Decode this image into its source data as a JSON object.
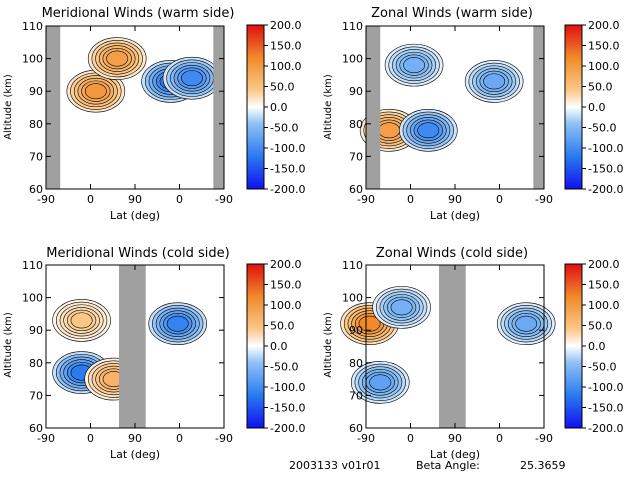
{
  "colorbar": {
    "ticks": [
      "200.0",
      "150.0",
      "100.0",
      "50.0",
      "0.0",
      "-50.0",
      "-100.0",
      "-150.0",
      "-200.0"
    ],
    "range": [
      -200,
      200
    ],
    "colors": [
      "#1010f0",
      "#2a7bf0",
      "#8fc2f5",
      "#ffffff",
      "#fbc98a",
      "#f08a2a",
      "#e01010"
    ]
  },
  "footer": {
    "date_version": "2003133 v01r01",
    "beta_label": "Beta Angle:",
    "beta_value": "25.3659"
  },
  "chart_data": [
    {
      "type": "heatmap",
      "title": "Meridional Winds (warm side)",
      "xlabel": "Lat (deg)",
      "ylabel": "Altitude (km)",
      "xticks": [
        "-90",
        "0",
        "90",
        "0",
        "-90"
      ],
      "yticks": [
        "60",
        "70",
        "80",
        "90",
        "100",
        "110"
      ],
      "ylim": [
        60,
        110
      ],
      "color_scale": [
        -200,
        200
      ],
      "grey_bands_x_fraction": [
        [
          0,
          0.08
        ],
        [
          0.94,
          1.0
        ]
      ],
      "blobs": [
        {
          "x": 0.28,
          "y": 90,
          "value": 120
        },
        {
          "x": 0.4,
          "y": 100,
          "value": 110
        },
        {
          "x": 0.7,
          "y": 93,
          "value": -140
        },
        {
          "x": 0.82,
          "y": 94,
          "value": -120
        }
      ]
    },
    {
      "type": "heatmap",
      "title": "Zonal Winds (warm side)",
      "xlabel": "Lat (deg)",
      "ylabel": "Altitude (km)",
      "xticks": [
        "-90",
        "0",
        "90",
        "0",
        "-90"
      ],
      "yticks": [
        "60",
        "70",
        "80",
        "90",
        "100",
        "110"
      ],
      "ylim": [
        60,
        110
      ],
      "color_scale": [
        -200,
        200
      ],
      "grey_bands_x_fraction": [
        [
          0,
          0.08
        ],
        [
          0.94,
          1.0
        ]
      ],
      "blobs": [
        {
          "x": 0.13,
          "y": 78,
          "value": 110
        },
        {
          "x": 0.35,
          "y": 78,
          "value": -120
        },
        {
          "x": 0.27,
          "y": 98,
          "value": -70
        },
        {
          "x": 0.72,
          "y": 93,
          "value": -80
        }
      ]
    },
    {
      "type": "heatmap",
      "title": "Meridional Winds (cold side)",
      "xlabel": "Lat (deg)",
      "ylabel": "Altitude (km)",
      "xticks": [
        "-90",
        "0",
        "90",
        "0",
        "-90"
      ],
      "yticks": [
        "60",
        "70",
        "80",
        "90",
        "100",
        "110"
      ],
      "ylim": [
        60,
        110
      ],
      "color_scale": [
        -200,
        200
      ],
      "grey_bands_x_fraction": [
        [
          0.41,
          0.56
        ]
      ],
      "blobs": [
        {
          "x": 0.2,
          "y": 77,
          "value": -140
        },
        {
          "x": 0.2,
          "y": 93,
          "value": 50
        },
        {
          "x": 0.74,
          "y": 92,
          "value": -130
        },
        {
          "x": 0.38,
          "y": 75,
          "value": 80
        }
      ]
    },
    {
      "type": "heatmap",
      "title": "Zonal Winds (cold side)",
      "xlabel": "Lat (deg)",
      "ylabel": "Altitude (km)",
      "xticks": [
        "-90",
        "0",
        "90",
        "0",
        "-90"
      ],
      "yticks": [
        "60",
        "70",
        "80",
        "90",
        "100",
        "110"
      ],
      "ylim": [
        60,
        110
      ],
      "color_scale": [
        -200,
        200
      ],
      "grey_bands_x_fraction": [
        [
          0.41,
          0.56
        ]
      ],
      "blobs": [
        {
          "x": 0.02,
          "y": 92,
          "value": 140
        },
        {
          "x": 0.2,
          "y": 97,
          "value": -70
        },
        {
          "x": 0.08,
          "y": 74,
          "value": -90
        },
        {
          "x": 0.9,
          "y": 92,
          "value": -80
        }
      ]
    }
  ]
}
